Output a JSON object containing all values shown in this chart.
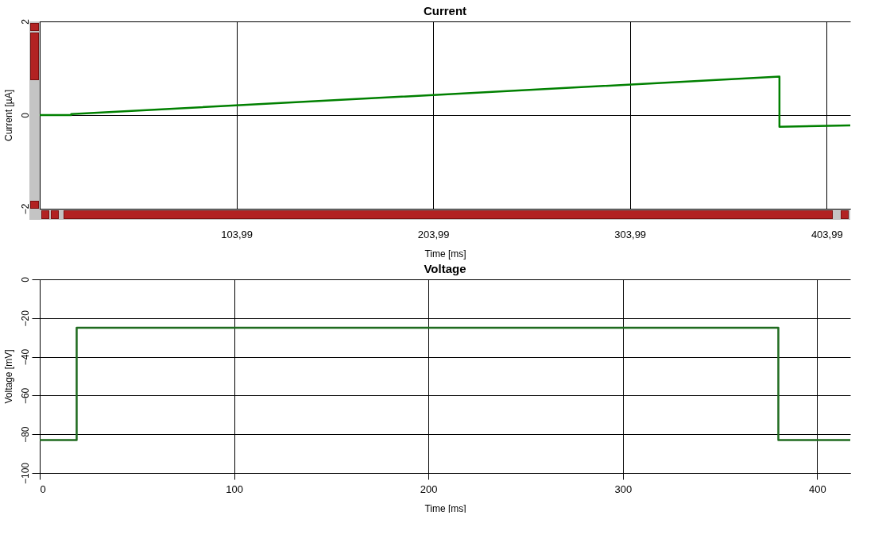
{
  "chart_data": [
    {
      "type": "line",
      "title": "Current",
      "xlabel": "Time [ms]",
      "ylabel": "Current [µA]",
      "grid": true,
      "line_style": "solid",
      "xlim": [
        3.99,
        416
      ],
      "xticks": [
        {
          "value": 3.99,
          "label": null
        },
        {
          "value": 103.99,
          "label": "103,99"
        },
        {
          "value": 203.99,
          "label": "203,99"
        },
        {
          "value": 303.99,
          "label": "303,99"
        },
        {
          "value": 403.99,
          "label": "403,99"
        }
      ],
      "ylim": [
        -2,
        2
      ],
      "yticks": [
        -2,
        0,
        2
      ],
      "series": [
        {
          "color": "#008000",
          "x": [
            3.99,
            20,
            20,
            380,
            380,
            416
          ],
          "values": [
            0,
            0,
            0.02,
            0.82,
            -0.25,
            -0.22
          ]
        }
      ]
    },
    {
      "type": "line",
      "title": "Voltage",
      "xlabel": "Time [ms]",
      "ylabel": "Voltage [mV]",
      "grid": true,
      "line_style": "solid",
      "xlim": [
        0,
        417
      ],
      "xticks": [
        0,
        100,
        200,
        300,
        400
      ],
      "ylim": [
        -100,
        0
      ],
      "yticks": [
        -100,
        -80,
        -60,
        -40,
        -20,
        0
      ],
      "series": [
        {
          "color": "#1f6b1f",
          "x": [
            0,
            19,
            19,
            380,
            380,
            417
          ],
          "values": [
            -83,
            -83,
            -25,
            -25,
            -83,
            -83
          ]
        }
      ]
    }
  ]
}
